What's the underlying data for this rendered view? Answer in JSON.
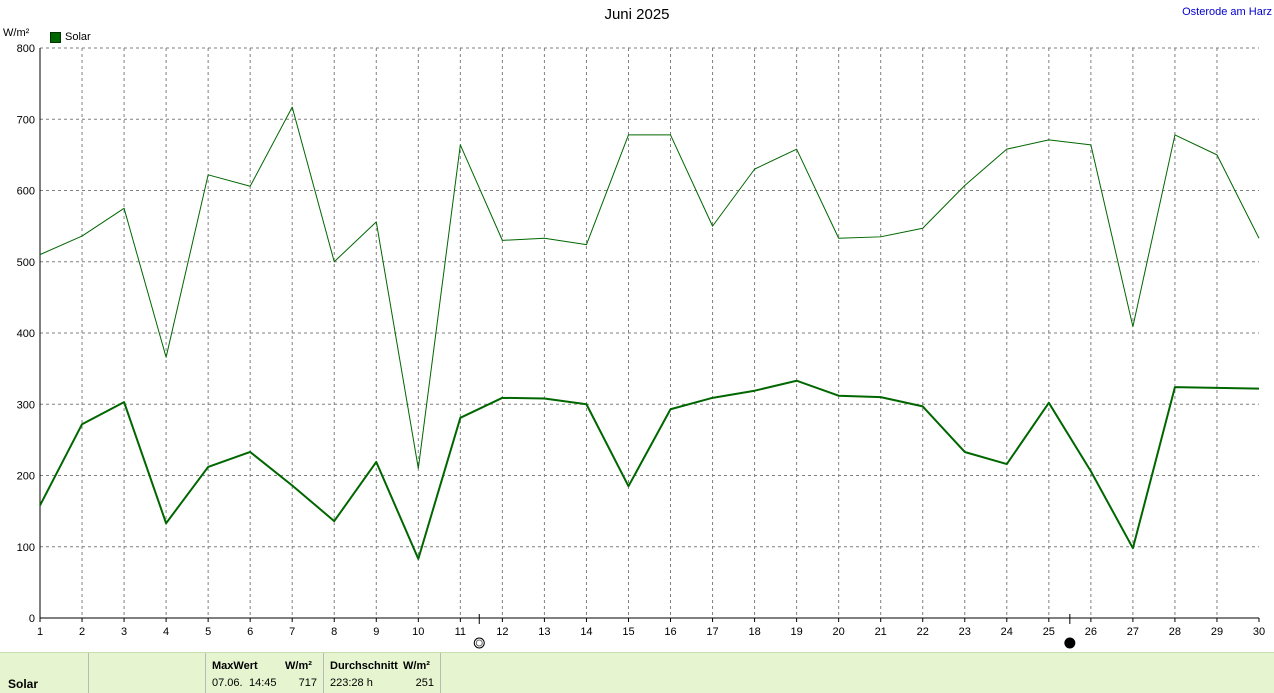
{
  "header": {
    "title": "Juni 2025",
    "location": "Osterode am Harz",
    "unit": "W/m²",
    "legend_label": "Solar"
  },
  "chart_data": {
    "type": "line",
    "title": "Juni 2025",
    "ylabel": "W/m²",
    "ylim": [
      0,
      800
    ],
    "yticks": [
      0,
      100,
      200,
      300,
      400,
      500,
      600,
      700,
      800
    ],
    "x": [
      1,
      2,
      3,
      4,
      5,
      6,
      7,
      8,
      9,
      10,
      11,
      12,
      13,
      14,
      15,
      16,
      17,
      18,
      19,
      20,
      21,
      22,
      23,
      24,
      25,
      26,
      27,
      28,
      29,
      30
    ],
    "grid": true,
    "legend_position": "top-left",
    "series": [
      {
        "name": "Solar",
        "color": "#006600",
        "values": [
          158,
          272,
          303,
          133,
          212,
          233,
          186,
          136,
          219,
          83,
          281,
          309,
          308,
          300,
          185,
          293,
          309,
          319,
          333,
          312,
          310,
          297,
          233,
          216,
          302,
          206,
          98,
          324,
          323,
          322
        ]
      },
      {
        "color": "#006600",
        "values": [
          510,
          536,
          575,
          366,
          622,
          606,
          717,
          500,
          556,
          210,
          664,
          530,
          533,
          524,
          678,
          678,
          550,
          630,
          658,
          533,
          535,
          547,
          607,
          658,
          671,
          664,
          409,
          678,
          650,
          533
        ]
      }
    ],
    "moon_phases": [
      {
        "phase": "full-moon",
        "x": 11.45
      },
      {
        "phase": "new-moon",
        "x": 25.5
      }
    ]
  },
  "footer": {
    "label": "Solar",
    "max_header": "MaxWert",
    "max_unit": "W/m²",
    "max_date": "07.06.",
    "max_time": "14:45",
    "max_value": "717",
    "avg_header": "Durchschnitt",
    "avg_unit": "W/m²",
    "avg_duration": "223:28 h",
    "avg_value": "251"
  }
}
